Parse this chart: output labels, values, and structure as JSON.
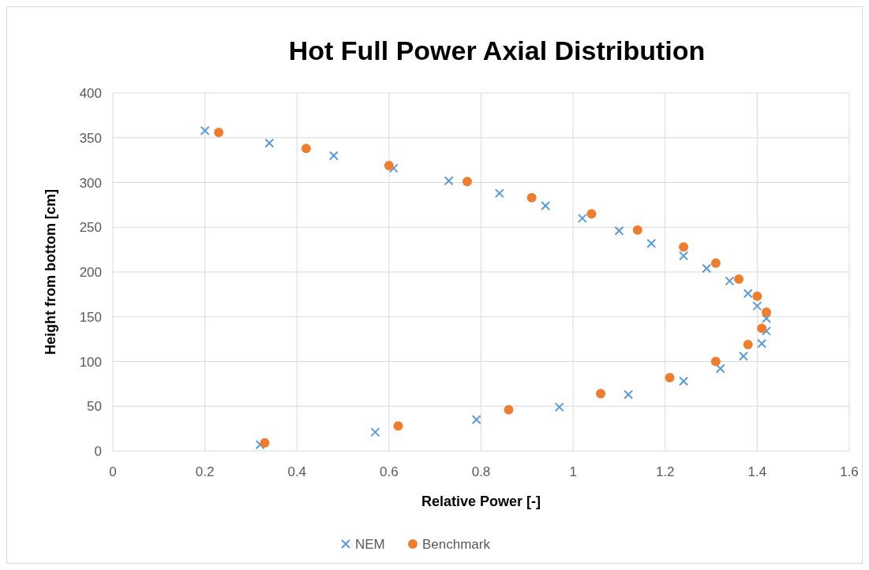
{
  "chart_data": {
    "type": "scatter",
    "title": "Hot Full Power Axial Distribution",
    "xlabel": "Relative Power [-]",
    "ylabel": "Height from bottom [cm]",
    "xlim": [
      0,
      1.6
    ],
    "xticks": [
      0,
      0.2,
      0.4,
      0.6,
      0.8,
      1,
      1.2,
      1.4,
      1.6
    ],
    "ylim": [
      0,
      400
    ],
    "yticks": [
      0,
      50,
      100,
      150,
      200,
      250,
      300,
      350,
      400
    ],
    "grid": true,
    "legend": "bottom",
    "series": [
      {
        "name": "NEM",
        "color": "#5b9bd5",
        "marker": "cross",
        "x": [
          0.2,
          0.34,
          0.48,
          0.61,
          0.73,
          0.84,
          0.94,
          1.02,
          1.1,
          1.17,
          1.24,
          1.29,
          1.34,
          1.38,
          1.4,
          1.42,
          1.42,
          1.41,
          1.37,
          1.32,
          1.24,
          1.12,
          0.97,
          0.79,
          0.57,
          0.32
        ],
        "values": [
          358,
          344,
          330,
          316,
          302,
          288,
          274,
          260,
          246,
          232,
          218,
          204,
          190,
          176,
          162,
          148,
          134,
          120,
          106,
          92,
          78,
          63,
          49,
          35,
          21,
          7
        ]
      },
      {
        "name": "Benchmark",
        "color": "#ed7d31",
        "marker": "circle",
        "x": [
          0.23,
          0.42,
          0.6,
          0.77,
          0.91,
          1.04,
          1.14,
          1.24,
          1.31,
          1.36,
          1.4,
          1.42,
          1.41,
          1.38,
          1.31,
          1.21,
          1.06,
          0.86,
          0.62,
          0.33
        ],
        "values": [
          356,
          338,
          319,
          301,
          283,
          265,
          247,
          228,
          210,
          192,
          173,
          155,
          137,
          119,
          100,
          82,
          64,
          46,
          28,
          9
        ]
      }
    ]
  }
}
